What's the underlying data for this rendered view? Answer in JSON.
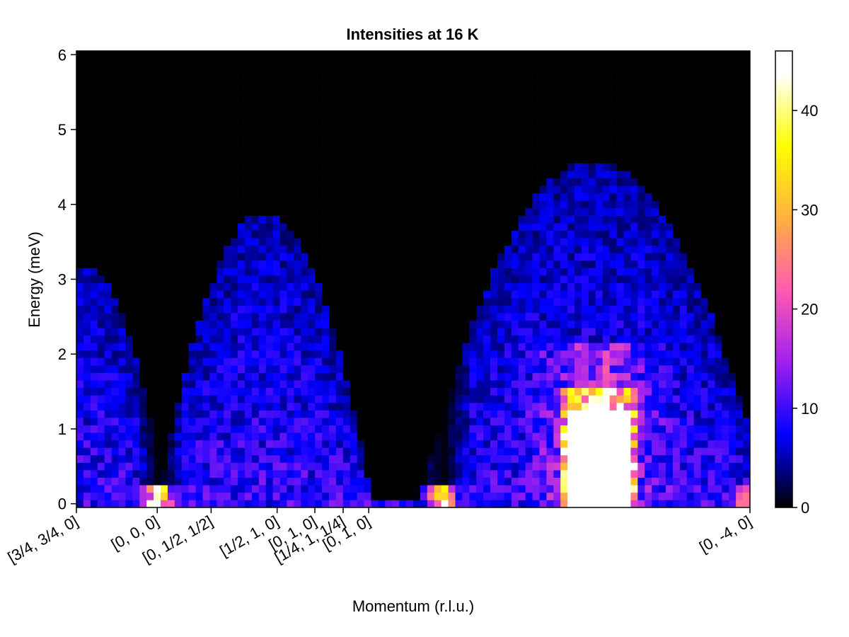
{
  "chart_data": {
    "type": "heatmap",
    "title": "Intensities at 16 K",
    "xlabel": "Momentum (r.l.u.)",
    "ylabel": "Energy (meV)",
    "ylim": [
      -0.05,
      6.05
    ],
    "y_ticks": [
      0,
      1,
      2,
      3,
      4,
      5,
      6
    ],
    "x_path_length": 25,
    "x_ticks": [
      {
        "label": "[3/4, 3/4, 0]",
        "pos": 0
      },
      {
        "label": "[0, 0, 0]",
        "pos": 3
      },
      {
        "label": "[0, 1/2, 1/2]",
        "pos": 5
      },
      {
        "label": "[1/2, 1, 0]",
        "pos": 7.45
      },
      {
        "label": "[0, 1, 0]",
        "pos": 8.85
      },
      {
        "label": "[1/4, 1, 1/4]",
        "pos": 9.9
      },
      {
        "label": "[0, 1, 0]",
        "pos": 10.85
      },
      {
        "label": "[0, -4, 0]",
        "pos": 25
      }
    ],
    "colorbar": {
      "min": 0,
      "max": 46,
      "ticks": [
        0,
        10,
        20,
        30,
        40
      ],
      "colormap": "plasma-like: black → blue → purple → pink → yellow → white",
      "stops": [
        "#000000",
        "#0000ff",
        "#a020f0",
        "#ff5ab0",
        "#ffb040",
        "#ffff00",
        "#ffffff"
      ]
    },
    "energy_bins": 62,
    "energy_bin_width": 0.1,
    "momentum_bins": 96,
    "features": [
      {
        "desc": "Elastic peak at [0,0,0]",
        "x": 3.0,
        "energy": 0.0,
        "intensity": 44
      },
      {
        "desc": "Elastic peak near x≈13.6",
        "x": 13.6,
        "energy": 0.0,
        "intensity": 44
      },
      {
        "desc": "Saturated bright region",
        "x_range": [
          18.3,
          20.5
        ],
        "energy_range": [
          0,
          1.6
        ],
        "intensity": 60
      }
    ]
  }
}
